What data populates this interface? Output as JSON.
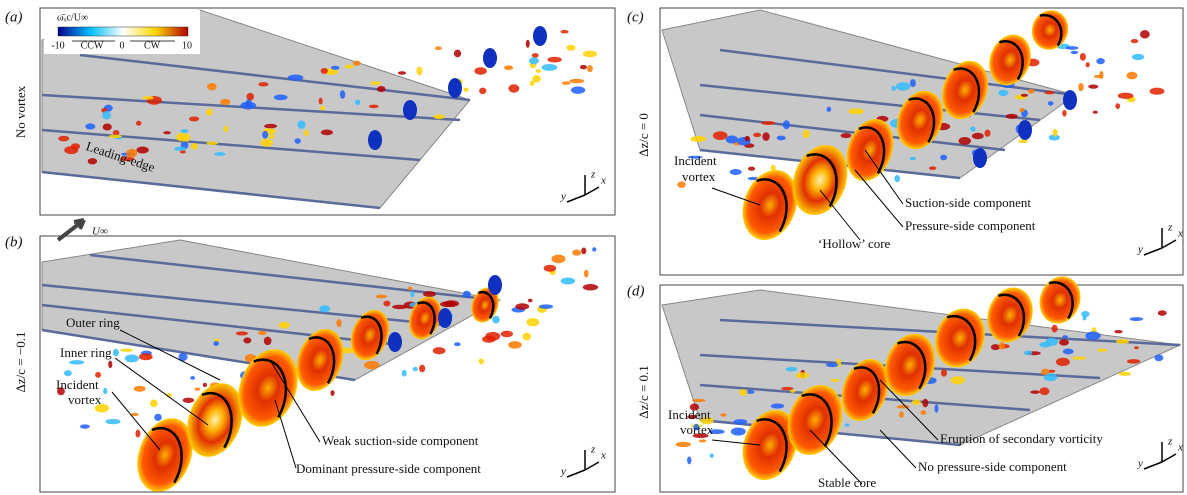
{
  "panels": [
    {
      "label": "(a)",
      "condition": "No vortex",
      "annotations": [
        "Leading-edge"
      ],
      "freestream": "U∞",
      "colorbar": {
        "title": "ω̄ₓc/U∞",
        "ticks": [
          -10,
          0,
          10
        ],
        "directions": [
          "CCW",
          "CW"
        ]
      },
      "axes": [
        "z",
        "y",
        "x"
      ]
    },
    {
      "label": "(b)",
      "condition": "Δz/c = −0.1",
      "annotations": [
        "Outer ring",
        "Inner ring",
        "Incident",
        "vortex",
        "Weak suction-side component",
        "Dominant pressure-side component"
      ],
      "axes": [
        "z",
        "y",
        "x"
      ]
    },
    {
      "label": "(c)",
      "condition": "Δz/c = 0",
      "annotations": [
        "Incident",
        "vortex",
        "Suction-side component",
        "Pressure-side component",
        "‘Hollow’ core"
      ],
      "axes": [
        "z",
        "y",
        "x"
      ]
    },
    {
      "label": "(d)",
      "condition": "Δz/c = 0.1",
      "annotations": [
        "Incident",
        "vortex",
        "Stable core",
        "Eruption of secondary vorticity",
        "No pressure-side component"
      ],
      "axes": [
        "z",
        "y",
        "x"
      ]
    }
  ]
}
